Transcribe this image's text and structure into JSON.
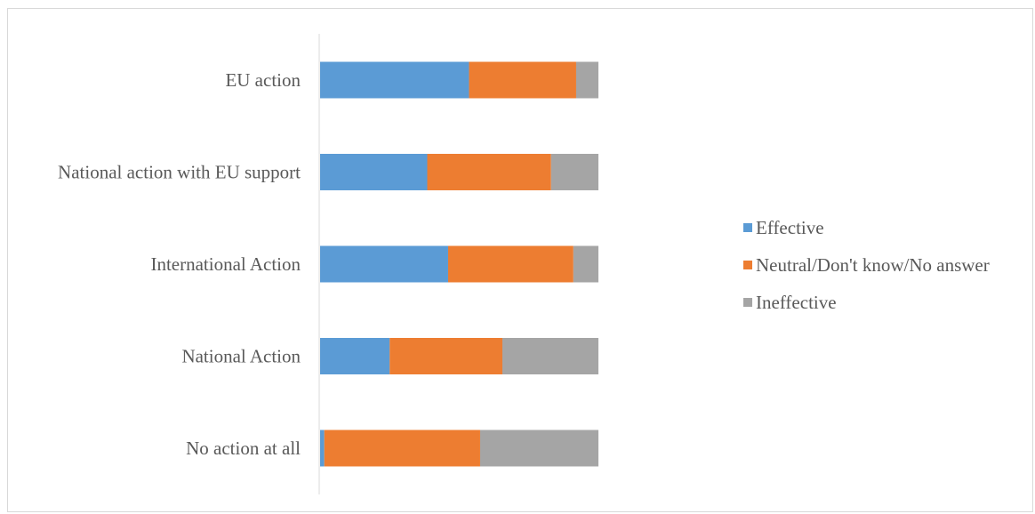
{
  "chart_data": {
    "type": "bar",
    "orientation": "horizontal",
    "stacked": "percent",
    "categories": [
      "EU action",
      "National action with EU support",
      "International Action",
      "National Action",
      "No action at all"
    ],
    "series": [
      {
        "name": "Effective",
        "color": "#5B9BD5",
        "values": [
          53.5,
          38.5,
          46,
          25,
          1.5
        ]
      },
      {
        "name": "Neutral/Don't know/No answer",
        "color": "#ED7D31",
        "values": [
          38.5,
          44.5,
          45,
          40.5,
          56
        ]
      },
      {
        "name": "Ineffective",
        "color": "#A5A5A5",
        "values": [
          8,
          17,
          9,
          34.5,
          42.5
        ]
      }
    ],
    "xlim": [
      0,
      100
    ],
    "grid": false,
    "legend": "right",
    "title": "",
    "xlabel": "",
    "ylabel": ""
  }
}
